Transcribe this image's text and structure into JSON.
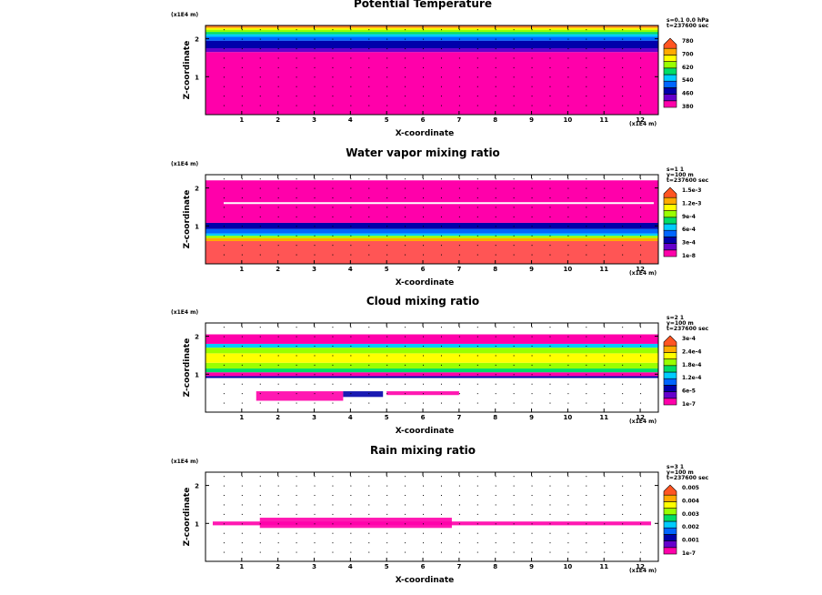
{
  "chart_data": [
    {
      "type": "heatmap",
      "title": "Potential Temperature",
      "xlabel": "X-coordinate",
      "ylabel": "Z-coordinate",
      "x_unit": "(x1E4 m)",
      "z_unit": "(x1E4 m)",
      "xlim": [
        0,
        12.5
      ],
      "zlim": [
        0,
        2.35
      ],
      "x_ticks": [
        "1",
        "2",
        "3",
        "4",
        "5",
        "6",
        "7",
        "8",
        "9",
        "10",
        "11",
        "12"
      ],
      "z_ticks": [
        "1",
        "2"
      ],
      "info": [
        "s=0.1 0.0 hPa",
        "t=237600 sec"
      ],
      "colorbar": {
        "colors": [
          "#ff00aa",
          "#6600cc",
          "#0000aa",
          "#0066ff",
          "#00ccff",
          "#00dd66",
          "#99ff00",
          "#ffff00",
          "#ffaa00",
          "#ff5522"
        ],
        "labels": [
          "380",
          "460",
          "540",
          "620",
          "700",
          "780"
        ]
      },
      "bands": [
        {
          "z0": 0.0,
          "z1": 1.65,
          "color": "#ff00aa"
        },
        {
          "z0": 1.65,
          "z1": 1.75,
          "color": "#6600cc"
        },
        {
          "z0": 1.75,
          "z1": 1.95,
          "color": "#0000aa"
        },
        {
          "z0": 1.95,
          "z1": 2.05,
          "color": "#0066ff"
        },
        {
          "z0": 2.05,
          "z1": 2.12,
          "color": "#00ccff"
        },
        {
          "z0": 2.12,
          "z1": 2.18,
          "color": "#00dd66"
        },
        {
          "z0": 2.18,
          "z1": 2.24,
          "color": "#99ff00"
        },
        {
          "z0": 2.24,
          "z1": 2.28,
          "color": "#ffff00"
        },
        {
          "z0": 2.28,
          "z1": 2.32,
          "color": "#ffaa00"
        },
        {
          "z0": 2.32,
          "z1": 2.35,
          "color": "#ff5522"
        }
      ]
    },
    {
      "type": "heatmap",
      "title": "Water vapor mixing ratio",
      "xlabel": "X-coordinate",
      "ylabel": "Z-coordinate",
      "x_unit": "(x1E4 m)",
      "z_unit": "(x1E4 m)",
      "xlim": [
        0,
        12.5
      ],
      "zlim": [
        0,
        2.35
      ],
      "x_ticks": [
        "1",
        "2",
        "3",
        "4",
        "5",
        "6",
        "7",
        "8",
        "9",
        "10",
        "11",
        "12"
      ],
      "z_ticks": [
        "1",
        "2"
      ],
      "info": [
        "s=1 1",
        "y=100 m",
        "t=237600 sec"
      ],
      "colorbar": {
        "colors": [
          "#ff00aa",
          "#6600cc",
          "#0000aa",
          "#0066ff",
          "#00ccff",
          "#00dd66",
          "#99ff00",
          "#ffff00",
          "#ffaa00",
          "#ff5522"
        ],
        "labels": [
          "1e-8",
          "3e-4",
          "6e-4",
          "9e-4",
          "1.2e-3",
          "1.5e-3"
        ]
      },
      "bands": [
        {
          "z0": 0.0,
          "z1": 0.6,
          "color": "#ff5555"
        },
        {
          "z0": 0.6,
          "z1": 0.68,
          "color": "#ffaa00"
        },
        {
          "z0": 0.68,
          "z1": 0.74,
          "color": "#99ff00"
        },
        {
          "z0": 0.74,
          "z1": 0.8,
          "color": "#00ccff"
        },
        {
          "z0": 0.8,
          "z1": 0.92,
          "color": "#0066ff"
        },
        {
          "z0": 0.92,
          "z1": 1.08,
          "color": "#0000aa"
        },
        {
          "z0": 1.08,
          "z1": 2.2,
          "color": "#ff00aa"
        }
      ],
      "gaps": [
        1.6
      ]
    },
    {
      "type": "heatmap",
      "title": "Cloud mixing ratio",
      "xlabel": "X-coordinate",
      "ylabel": "Z-coordinate",
      "x_unit": "(x1E4 m)",
      "z_unit": "(x1E4 m)",
      "xlim": [
        0,
        12.5
      ],
      "zlim": [
        0,
        2.35
      ],
      "x_ticks": [
        "1",
        "2",
        "3",
        "4",
        "5",
        "6",
        "7",
        "8",
        "9",
        "10",
        "11",
        "12"
      ],
      "z_ticks": [
        "1",
        "2"
      ],
      "info": [
        "s=2 1",
        "y=100 m",
        "t=237600 sec"
      ],
      "colorbar": {
        "colors": [
          "#ff00aa",
          "#6600cc",
          "#0000aa",
          "#0066ff",
          "#00ccff",
          "#00dd66",
          "#99ff00",
          "#ffff00",
          "#ffaa00",
          "#ff5522"
        ],
        "labels": [
          "1e-7",
          "6e-5",
          "1.2e-4",
          "1.8e-4",
          "2.4e-4",
          "3e-4"
        ]
      },
      "bands": [
        {
          "z0": 0.9,
          "z1": 0.95,
          "color": "#0000aa"
        },
        {
          "z0": 0.95,
          "z1": 1.05,
          "color": "#ff00aa"
        },
        {
          "z0": 1.05,
          "z1": 1.15,
          "color": "#00dd66"
        },
        {
          "z0": 1.15,
          "z1": 1.3,
          "color": "#99ff00"
        },
        {
          "z0": 1.3,
          "z1": 1.55,
          "color": "#ffff00"
        },
        {
          "z0": 1.55,
          "z1": 1.7,
          "color": "#99ff00"
        },
        {
          "z0": 1.7,
          "z1": 1.8,
          "color": "#00ccff"
        },
        {
          "z0": 1.8,
          "z1": 2.05,
          "color": "#ff00aa"
        }
      ],
      "patches": [
        {
          "x0": 1.4,
          "x1": 3.8,
          "z0": 0.3,
          "z1": 0.55,
          "color": "#ff00aa"
        },
        {
          "x0": 3.8,
          "x1": 4.9,
          "z0": 0.4,
          "z1": 0.55,
          "color": "#0000aa"
        },
        {
          "x0": 5.0,
          "x1": 7.0,
          "z0": 0.45,
          "z1": 0.55,
          "color": "#ff00aa"
        }
      ]
    },
    {
      "type": "heatmap",
      "title": "Rain mixing ratio",
      "xlabel": "X-coordinate",
      "ylabel": "Z-coordinate",
      "x_unit": "(x1E4 m)",
      "z_unit": "(x1E4 m)",
      "xlim": [
        0,
        12.5
      ],
      "zlim": [
        0,
        2.35
      ],
      "x_ticks": [
        "1",
        "2",
        "3",
        "4",
        "5",
        "6",
        "7",
        "8",
        "9",
        "10",
        "11",
        "12"
      ],
      "z_ticks": [
        "1",
        "2"
      ],
      "info": [
        "s=3 1",
        "y=100 m",
        "t=237600 sec"
      ],
      "colorbar": {
        "colors": [
          "#ff00aa",
          "#6600cc",
          "#0000aa",
          "#0066ff",
          "#00ccff",
          "#00dd66",
          "#99ff00",
          "#ffff00",
          "#ffaa00",
          "#ff5522"
        ],
        "labels": [
          "1e-7",
          "0.001",
          "0.002",
          "0.003",
          "0.004",
          "0.005"
        ]
      },
      "patches": [
        {
          "x0": 0.2,
          "x1": 12.3,
          "z0": 0.95,
          "z1": 1.05,
          "color": "#ff00aa"
        },
        {
          "x0": 1.5,
          "x1": 6.8,
          "z0": 0.88,
          "z1": 1.15,
          "color": "#ff00aa"
        }
      ]
    }
  ]
}
